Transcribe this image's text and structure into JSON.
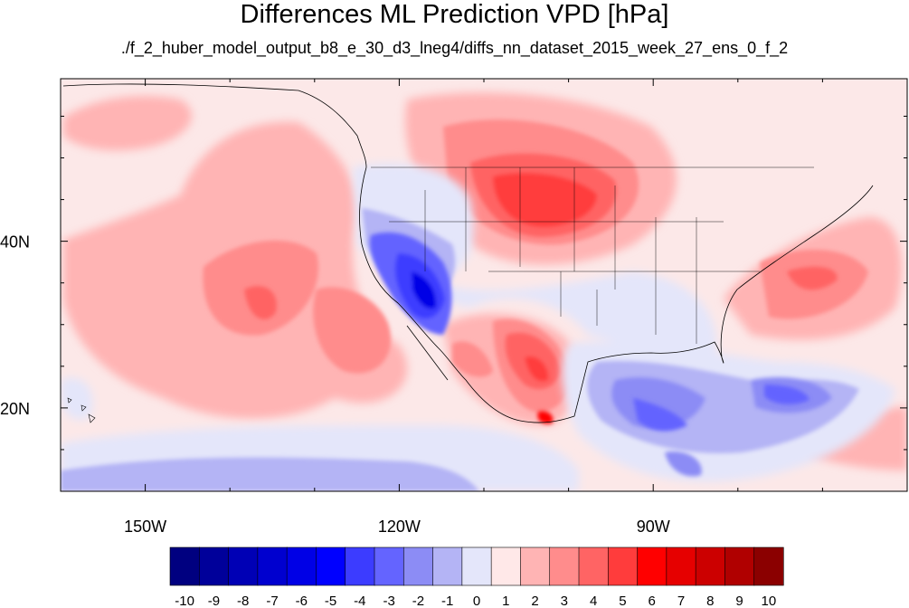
{
  "title": "Differences ML Prediction VPD [hPa]",
  "subtitle": "./f_2_huber_model_output_b8_e_30_d3_lneg4/diffs_nn_dataset_2015_week_27_ens_0_f_2",
  "map": {
    "lat_labels": [
      {
        "text": "40N",
        "lat": 40
      },
      {
        "text": "20N",
        "lat": 20
      }
    ],
    "lon_labels": [
      {
        "text": "150W",
        "lon": -150
      },
      {
        "text": "120W",
        "lon": -120
      },
      {
        "text": "90W",
        "lon": -90
      }
    ],
    "lon_range": [
      -160,
      -60
    ],
    "lat_range": [
      10,
      59.5
    ]
  },
  "colorbar": {
    "labels": [
      "-10",
      "-9",
      "-8",
      "-7",
      "-6",
      "-5",
      "-4",
      "-3",
      "-2",
      "-1",
      "0",
      "1",
      "2",
      "3",
      "4",
      "5",
      "6",
      "7",
      "8",
      "9",
      "10"
    ],
    "colors": [
      "#000080",
      "#00009a",
      "#0000b5",
      "#0000cf",
      "#0000e6",
      "#0000ff",
      "#3c3cff",
      "#6464ff",
      "#8c8cf5",
      "#b4b4f5",
      "#e4e6fa",
      "#ffe8e8",
      "#ffb4b4",
      "#ff8c8c",
      "#ff6464",
      "#ff3c3c",
      "#ff0000",
      "#e60000",
      "#cc0000",
      "#b00000",
      "#8b0000"
    ]
  },
  "colors": {
    "neutral_fill": "#fce8e8"
  }
}
